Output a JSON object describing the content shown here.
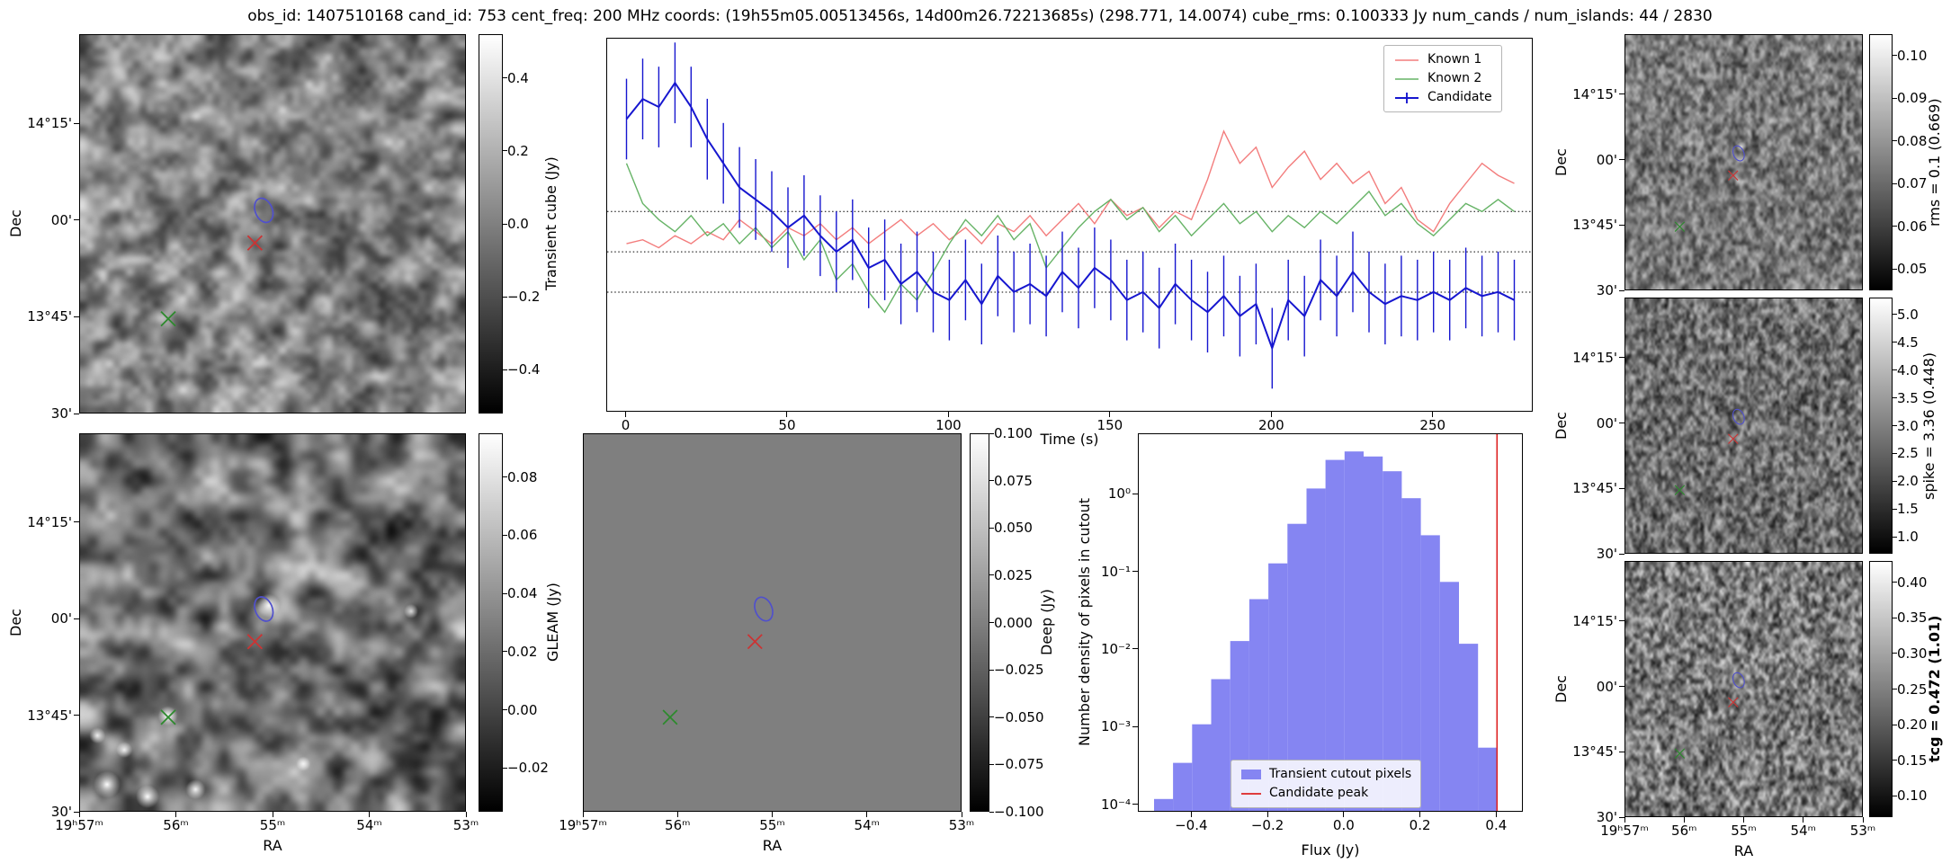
{
  "title": "obs_id: 1407510168 cand_id: 753 cent_freq: 200 MHz coords: (19h55m05.00513456s, 14d00m26.72213685s) (298.771, 14.0074) cube_rms: 0.100333 Jy num_cands / num_islands: 44 / 2830",
  "colors": {
    "known1": "#f37d7d",
    "known2": "#66b366",
    "candidate": "#1616cf",
    "hist_fill": "#8585f2",
    "candidate_peak": "#dd2222",
    "ellipse": "#5050cc",
    "red_x": "#cc3333",
    "green_x": "#2d8a2d",
    "dotted_line": "#000000"
  },
  "sky_axes": {
    "dec_label": "Dec",
    "ra_label": "RA",
    "dec_ticks": [
      "14°15'",
      "00'",
      "13°45'",
      "30'"
    ],
    "dec_fracs": [
      0.235,
      0.49,
      0.745,
      1.0
    ],
    "ra_ticks": [
      "19ʰ57ᵐ",
      "56ᵐ",
      "55ᵐ",
      "54ᵐ",
      "53ᵐ"
    ],
    "ra_fracs": [
      0.0,
      0.25,
      0.5,
      0.75,
      1.0
    ]
  },
  "markers": {
    "candidate_ellipse": {
      "fx": 0.475,
      "fy": 0.462
    },
    "red_x": {
      "fx": 0.452,
      "fy": 0.548
    },
    "green_x": {
      "fx": 0.228,
      "fy": 0.748
    }
  },
  "cutouts": [
    {
      "id": "transient",
      "cbar_label": "Transient cube (Jy)",
      "bold": false,
      "vmin": -0.52,
      "vmax": 0.52,
      "cbar_tick_values": [
        0.4,
        0.2,
        0.0,
        -0.2,
        -0.4
      ],
      "cbar_tick_labels": [
        "0.4",
        "0.2",
        "0.0",
        "−0.2",
        "−0.4"
      ]
    },
    {
      "id": "gleam",
      "cbar_label": "GLEAM (Jy)",
      "bold": false,
      "vmin": -0.035,
      "vmax": 0.095,
      "cbar_tick_values": [
        0.08,
        0.06,
        0.04,
        0.02,
        0.0,
        -0.02
      ],
      "cbar_tick_labels": [
        "0.08",
        "0.06",
        "0.04",
        "0.02",
        "0.00",
        "−0.02"
      ]
    },
    {
      "id": "deep",
      "cbar_label": "Deep (Jy)",
      "bold": false,
      "vmin": -0.1,
      "vmax": 0.1,
      "cbar_tick_values": [
        0.1,
        0.075,
        0.05,
        0.025,
        0.0,
        -0.025,
        -0.05,
        -0.075,
        -0.1
      ],
      "cbar_tick_labels": [
        "0.100",
        "0.075",
        "0.050",
        "0.025",
        "0.000",
        "−0.025",
        "−0.050",
        "−0.075",
        "−0.100"
      ]
    },
    {
      "id": "rms",
      "cbar_label": "rms = 0.1 (0.669)",
      "bold": false,
      "vmin": 0.045,
      "vmax": 0.105,
      "cbar_tick_values": [
        0.1,
        0.09,
        0.08,
        0.07,
        0.06,
        0.05
      ],
      "cbar_tick_labels": [
        "0.10",
        "0.09",
        "0.08",
        "0.07",
        "0.06",
        "0.05"
      ]
    },
    {
      "id": "spike",
      "cbar_label": "spike = 3.36 (0.448)",
      "bold": false,
      "vmin": 0.7,
      "vmax": 5.3,
      "cbar_tick_values": [
        5.0,
        4.5,
        4.0,
        3.5,
        3.0,
        2.5,
        2.0,
        1.5,
        1.0
      ],
      "cbar_tick_labels": [
        "5.0",
        "4.5",
        "4.0",
        "3.5",
        "3.0",
        "2.5",
        "2.0",
        "1.5",
        "1.0"
      ]
    },
    {
      "id": "tcg",
      "cbar_label": "tcg = 0.472 (1.01)",
      "bold": true,
      "vmin": 0.07,
      "vmax": 0.43,
      "cbar_tick_values": [
        0.4,
        0.35,
        0.3,
        0.25,
        0.2,
        0.15,
        0.1
      ],
      "cbar_tick_labels": [
        "0.40",
        "0.35",
        "0.30",
        "0.25",
        "0.20",
        "0.15",
        "0.10"
      ]
    }
  ],
  "chart_data": [
    {
      "type": "line",
      "title": "",
      "xlabel": "Time (s)",
      "ylabel": "",
      "xlim": [
        -6,
        281
      ],
      "ylim": [
        -0.4,
        0.53
      ],
      "xticks": [
        0,
        50,
        100,
        150,
        200,
        250
      ],
      "hlines": [
        0.100333,
        0.0,
        -0.100333
      ],
      "legend_loc": "upper right",
      "x": [
        0,
        5,
        10,
        15,
        20,
        25,
        30,
        35,
        40,
        45,
        50,
        55,
        60,
        65,
        70,
        75,
        80,
        85,
        90,
        95,
        100,
        105,
        110,
        115,
        120,
        125,
        130,
        135,
        140,
        145,
        150,
        155,
        160,
        165,
        170,
        175,
        180,
        185,
        190,
        195,
        200,
        205,
        210,
        215,
        220,
        225,
        230,
        235,
        240,
        245,
        250,
        255,
        260,
        265,
        270,
        275
      ],
      "series": [
        {
          "name": "Known 1",
          "color": "#f37d7d",
          "values": [
            0.02,
            0.03,
            0.01,
            0.04,
            0.02,
            0.05,
            0.03,
            0.08,
            0.05,
            0.02,
            0.06,
            0.04,
            0.07,
            0.03,
            0.06,
            0.02,
            0.05,
            0.08,
            0.04,
            0.07,
            0.03,
            0.06,
            0.02,
            0.07,
            0.05,
            0.09,
            0.04,
            0.08,
            0.12,
            0.07,
            0.13,
            0.09,
            0.11,
            0.06,
            0.1,
            0.08,
            0.18,
            0.3,
            0.22,
            0.26,
            0.16,
            0.21,
            0.25,
            0.18,
            0.22,
            0.17,
            0.2,
            0.12,
            0.16,
            0.08,
            0.05,
            0.12,
            0.17,
            0.22,
            0.19,
            0.17
          ]
        },
        {
          "name": "Known 2",
          "color": "#66b366",
          "values": [
            0.22,
            0.12,
            0.08,
            0.05,
            0.09,
            0.04,
            0.07,
            0.02,
            0.06,
            0.01,
            0.05,
            -0.02,
            0.03,
            -0.07,
            -0.03,
            -0.1,
            -0.15,
            -0.08,
            -0.12,
            -0.05,
            0.02,
            0.08,
            0.04,
            0.09,
            0.03,
            0.07,
            -0.04,
            0.01,
            0.06,
            0.1,
            0.13,
            0.08,
            0.11,
            0.05,
            0.09,
            0.04,
            0.08,
            0.12,
            0.07,
            0.1,
            0.05,
            0.09,
            0.06,
            0.1,
            0.07,
            0.11,
            0.15,
            0.09,
            0.12,
            0.07,
            0.04,
            0.08,
            0.12,
            0.1,
            0.13,
            0.1
          ]
        },
        {
          "name": "Candidate",
          "color": "#1616cf",
          "yerr": 0.100333,
          "values": [
            0.33,
            0.38,
            0.36,
            0.42,
            0.36,
            0.28,
            0.22,
            0.16,
            0.13,
            0.1,
            0.06,
            0.09,
            0.04,
            0.0,
            0.03,
            -0.04,
            -0.02,
            -0.08,
            -0.05,
            -0.1,
            -0.12,
            -0.07,
            -0.13,
            -0.06,
            -0.1,
            -0.08,
            -0.11,
            -0.05,
            -0.09,
            -0.04,
            -0.07,
            -0.12,
            -0.1,
            -0.14,
            -0.08,
            -0.12,
            -0.15,
            -0.11,
            -0.16,
            -0.13,
            -0.24,
            -0.12,
            -0.16,
            -0.07,
            -0.11,
            -0.05,
            -0.1,
            -0.13,
            -0.11,
            -0.12,
            -0.1,
            -0.12,
            -0.09,
            -0.11,
            -0.1,
            -0.12
          ]
        }
      ]
    },
    {
      "type": "bar",
      "title": "",
      "xlabel": "Flux (Jy)",
      "ylabel": "Number density of pixels in cutout",
      "yscale": "log",
      "xlim": [
        -0.54,
        0.47
      ],
      "ylim": [
        8e-05,
        6
      ],
      "bin_edges": [
        -0.5,
        -0.45,
        -0.4,
        -0.35,
        -0.3,
        -0.25,
        -0.2,
        -0.15,
        -0.1,
        -0.05,
        0.0,
        0.05,
        0.1,
        0.15,
        0.2,
        0.25,
        0.3,
        0.35,
        0.4
      ],
      "values": [
        0.00012,
        0.00035,
        0.0011,
        0.0042,
        0.013,
        0.045,
        0.13,
        0.42,
        1.2,
        2.8,
        3.6,
        3.1,
        2.0,
        0.9,
        0.3,
        0.075,
        0.012,
        0.00055
      ],
      "vline": 0.4,
      "xtick_values": [
        -0.4,
        -0.2,
        0.0,
        0.2,
        0.4
      ],
      "xtick_labels": [
        "−0.4",
        "−0.2",
        "0.0",
        "0.2",
        "0.4"
      ],
      "ytick_values": [
        1,
        0.1,
        0.01,
        0.001,
        0.0001
      ],
      "ytick_labels": [
        "10⁰",
        "10⁻¹",
        "10⁻²",
        "10⁻³",
        "10⁻⁴"
      ],
      "legend": [
        "Transient cutout pixels",
        "Candidate peak"
      ],
      "legend_loc": "lower center"
    }
  ]
}
